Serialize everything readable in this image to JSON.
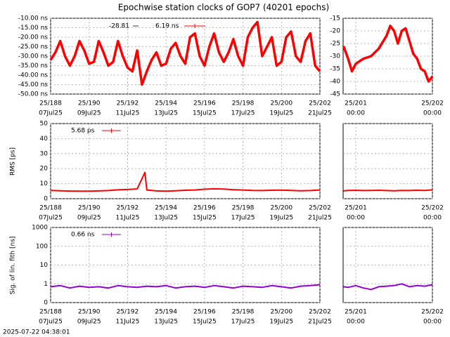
{
  "title": "Epochwise station clocks of GOP7 (40201 epochs)",
  "timestamp": "2025-07-22 04:38:01",
  "chart_data": [
    {
      "type": "line",
      "annotation": "-28.81",
      "x": [
        188,
        188.25,
        188.5,
        188.75,
        189,
        189.25,
        189.5,
        189.75,
        190,
        190.25,
        190.5,
        190.75,
        191,
        191.25,
        191.5,
        191.75,
        192,
        192.25,
        192.5,
        192.75,
        193,
        193.25,
        193.5,
        193.75,
        194,
        194.25,
        194.5,
        194.75,
        195,
        195.25,
        195.5,
        195.75,
        196,
        196.25,
        196.5,
        196.75,
        197,
        197.25,
        197.5,
        197.75,
        198,
        198.25,
        198.5,
        198.75,
        199,
        199.25,
        199.5,
        199.75,
        200,
        200.25,
        200.5,
        200.75,
        201,
        201.25,
        201.5,
        201.75,
        202
      ],
      "series": [
        {
          "name": "6.19 ns",
          "color": "#ff0000",
          "values": [
            -32,
            -28,
            -22,
            -30,
            -35,
            -30,
            -22,
            -27,
            -34,
            -33,
            -22,
            -28,
            -35,
            -33,
            -22,
            -30,
            -36,
            -38,
            -27,
            -45,
            -38,
            -32,
            -28,
            -35,
            -34,
            -26,
            -23,
            -30,
            -34,
            -20,
            -18,
            -30,
            -35,
            -25,
            -18,
            -28,
            -33,
            -28,
            -21,
            -30,
            -35,
            -20,
            -15,
            -12,
            -30,
            -25,
            -20,
            -35,
            -33,
            -20,
            -17,
            -30,
            -33,
            -22,
            -18,
            -35,
            -38
          ]
        }
      ],
      "xlim": [
        188,
        202
      ],
      "xticks": [
        {
          "value": 188,
          "label": [
            "25/188",
            "07Jul25"
          ]
        },
        {
          "value": 190,
          "label": [
            "25/190",
            "09Jul25"
          ]
        },
        {
          "value": 192,
          "label": [
            "25/192",
            "11Jul25"
          ]
        },
        {
          "value": 194,
          "label": [
            "25/194",
            "13Jul25"
          ]
        },
        {
          "value": 196,
          "label": [
            "25/196",
            "15Jul25"
          ]
        },
        {
          "value": 198,
          "label": [
            "25/198",
            "17Jul25"
          ]
        },
        {
          "value": 200,
          "label": [
            "25/200",
            "19Jul25"
          ]
        },
        {
          "value": 202,
          "label": [
            "25/202",
            "21Jul25"
          ]
        }
      ],
      "ylim": [
        -50,
        -10
      ],
      "yticks": [
        {
          "value": -10,
          "label": "-10.00 ns"
        },
        {
          "value": -15,
          "label": "-15.00 ns"
        },
        {
          "value": -20,
          "label": "-20.00 ns"
        },
        {
          "value": -25,
          "label": "-25.00 ns"
        },
        {
          "value": -30,
          "label": "-30.00 ns"
        },
        {
          "value": -35,
          "label": "-35.00 ns"
        },
        {
          "value": -40,
          "label": "-40.00 ns"
        },
        {
          "value": -45,
          "label": "-45.00 ns"
        },
        {
          "value": -50,
          "label": "-50.00 ns"
        }
      ],
      "grid": true
    },
    {
      "type": "line",
      "x": [
        200.84,
        200.9,
        200.95,
        201,
        201.1,
        201.2,
        201.3,
        201.4,
        201.45,
        201.5,
        201.55,
        201.6,
        201.65,
        201.7,
        201.75,
        201.8,
        201.85,
        201.9,
        201.95,
        202
      ],
      "series": [
        {
          "color": "#ff0000",
          "values": [
            -26,
            -31,
            -36,
            -33,
            -31,
            -30,
            -27,
            -22,
            -18,
            -20,
            -25,
            -20,
            -19,
            -24,
            -29,
            -31,
            -35,
            -36,
            -40,
            -38
          ]
        }
      ],
      "xlim": [
        200.835,
        202
      ],
      "xticks": [
        {
          "value": 201,
          "label": [
            "25/201",
            "00:00"
          ]
        },
        {
          "value": 202,
          "label": [
            "25/202",
            "00:00"
          ]
        }
      ],
      "ylim": [
        -45,
        -15
      ],
      "yticks": [
        -15,
        -20,
        -25,
        -30,
        -35,
        -40,
        -45
      ],
      "grid": true
    },
    {
      "type": "line",
      "ylabel": "RMS [ps]",
      "x": [
        188,
        188.5,
        189,
        189.5,
        190,
        190.5,
        191,
        191.5,
        192,
        192.5,
        192.9,
        193,
        193.5,
        194,
        194.5,
        195,
        195.5,
        196,
        196.5,
        197,
        197.5,
        198,
        198.5,
        199,
        199.5,
        200,
        200.5,
        201,
        201.5,
        202
      ],
      "series": [
        {
          "name": "5.68 ps",
          "color": "#ff0000",
          "values": [
            5.5,
            5.3,
            5.1,
            5.0,
            5.0,
            5.2,
            5.4,
            5.9,
            6.1,
            6.5,
            17.5,
            5.8,
            5.2,
            5.0,
            5.3,
            5.6,
            5.8,
            6.3,
            6.6,
            6.4,
            6.0,
            5.8,
            5.5,
            5.4,
            5.6,
            5.7,
            5.5,
            5.3,
            5.4,
            5.8
          ]
        }
      ],
      "xlim": [
        188,
        202
      ],
      "xticks": [
        {
          "value": 188,
          "label": [
            "25/188",
            "07Jul25"
          ]
        },
        {
          "value": 190,
          "label": [
            "25/190",
            "09Jul25"
          ]
        },
        {
          "value": 192,
          "label": [
            "25/192",
            "11Jul25"
          ]
        },
        {
          "value": 194,
          "label": [
            "25/194",
            "13Jul25"
          ]
        },
        {
          "value": 196,
          "label": [
            "25/196",
            "15Jul25"
          ]
        },
        {
          "value": 198,
          "label": [
            "25/198",
            "17Jul25"
          ]
        },
        {
          "value": 200,
          "label": [
            "25/200",
            "19Jul25"
          ]
        },
        {
          "value": 202,
          "label": [
            "25/202",
            "21Jul25"
          ]
        }
      ],
      "ylim": [
        0,
        50
      ],
      "yticks": [
        0,
        10,
        20,
        30,
        40,
        50
      ],
      "grid": true
    },
    {
      "type": "line",
      "x": [
        200.84,
        200.9,
        201,
        201.1,
        201.2,
        201.3,
        201.4,
        201.5,
        201.6,
        201.7,
        201.8,
        201.9,
        202
      ],
      "series": [
        {
          "color": "#ff0000",
          "values": [
            5.2,
            5.5,
            5.6,
            5.4,
            5.5,
            5.6,
            5.4,
            5.3,
            5.5,
            5.4,
            5.6,
            5.5,
            5.9
          ]
        }
      ],
      "xlim": [
        200.835,
        202
      ],
      "xticks": [
        {
          "value": 201,
          "label": [
            "25/201",
            "00:00"
          ]
        },
        {
          "value": 202,
          "label": [
            "25/202",
            "00:00"
          ]
        }
      ],
      "ylim": [
        0,
        50
      ],
      "yticks": [
        0,
        10,
        20,
        30,
        40,
        50
      ],
      "grid": true
    },
    {
      "type": "line",
      "ylabel": "Sig. of lin. fith [ns]",
      "log_y": true,
      "x": [
        188,
        188.5,
        189,
        189.5,
        190,
        190.5,
        191,
        191.5,
        192,
        192.5,
        193,
        193.5,
        194,
        194.5,
        195,
        195.5,
        196,
        196.5,
        197,
        197.5,
        198,
        198.5,
        199,
        199.5,
        200,
        200.5,
        201,
        201.5,
        202
      ],
      "series": [
        {
          "name": "0.66 ns",
          "color": "#9400d3",
          "values": [
            0.7,
            0.8,
            0.6,
            0.75,
            0.65,
            0.7,
            0.6,
            0.8,
            0.7,
            0.65,
            0.75,
            0.7,
            0.8,
            0.6,
            0.7,
            0.75,
            0.65,
            0.8,
            0.7,
            0.6,
            0.75,
            0.7,
            0.65,
            0.8,
            0.7,
            0.6,
            0.75,
            0.8,
            0.9
          ]
        }
      ],
      "xlim": [
        188,
        202
      ],
      "xticks": [
        {
          "value": 188,
          "label": [
            "25/188",
            "07Jul25"
          ]
        },
        {
          "value": 190,
          "label": [
            "25/190",
            "09Jul25"
          ]
        },
        {
          "value": 192,
          "label": [
            "25/192",
            "11Jul25"
          ]
        },
        {
          "value": 194,
          "label": [
            "25/194",
            "13Jul25"
          ]
        },
        {
          "value": 196,
          "label": [
            "25/196",
            "15Jul25"
          ]
        },
        {
          "value": 198,
          "label": [
            "25/198",
            "17Jul25"
          ]
        },
        {
          "value": 200,
          "label": [
            "25/200",
            "19Jul25"
          ]
        },
        {
          "value": 202,
          "label": [
            "25/202",
            "21Jul25"
          ]
        }
      ],
      "ylim": [
        0.1,
        1000
      ],
      "yticks": [
        1000,
        100,
        10,
        1,
        {
          "value": 0.1,
          "label": "0"
        }
      ],
      "grid": true
    },
    {
      "type": "line",
      "log_y": true,
      "x": [
        200.84,
        200.9,
        201,
        201.1,
        201.2,
        201.3,
        201.4,
        201.5,
        201.6,
        201.7,
        201.8,
        201.9,
        202
      ],
      "series": [
        {
          "color": "#9400d3",
          "values": [
            0.7,
            0.65,
            0.8,
            0.6,
            0.5,
            0.7,
            0.75,
            0.8,
            1.0,
            0.7,
            0.8,
            0.75,
            0.9
          ]
        }
      ],
      "xlim": [
        200.835,
        202
      ],
      "xticks": [
        {
          "value": 201,
          "label": [
            "25/201",
            "00:00"
          ]
        },
        {
          "value": 202,
          "label": [
            "25/202",
            "00:00"
          ]
        }
      ],
      "ylim": [
        0.1,
        1000
      ],
      "yticks": [
        1000,
        100,
        10,
        1,
        0.1
      ],
      "grid": true
    }
  ]
}
